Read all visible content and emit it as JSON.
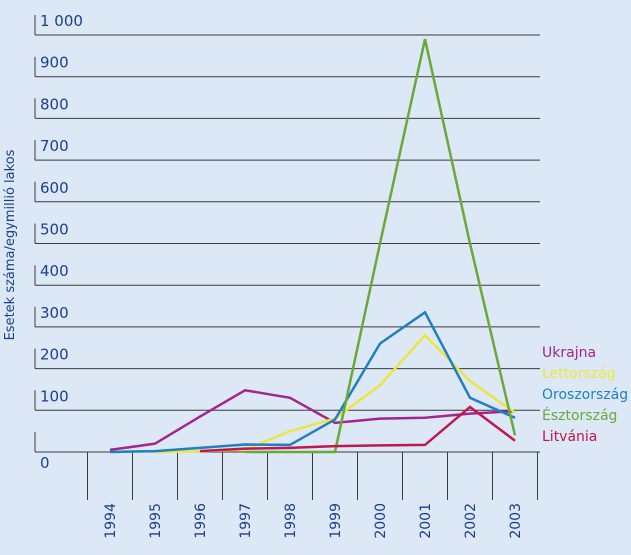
{
  "chart_data": {
    "type": "line",
    "y_label": "Esetek száma/egymillió lakos",
    "categories": [
      "1994",
      "1995",
      "1996",
      "1997",
      "1998",
      "1999",
      "2000",
      "2001",
      "2002",
      "2003"
    ],
    "ylim": [
      0,
      1000
    ],
    "yticks": [
      0,
      100,
      200,
      300,
      400,
      500,
      600,
      700,
      800,
      900,
      {
        "value": 1000,
        "label": "1 000"
      }
    ],
    "grid": true,
    "series": [
      {
        "name": "Ukrajna",
        "color": "#a3268f",
        "values": [
          5,
          20,
          85,
          148,
          130,
          70,
          80,
          82,
          92,
          98
        ]
      },
      {
        "name": "Lettország",
        "color": "#ece540",
        "values": [
          null,
          0,
          2,
          5,
          50,
          80,
          160,
          280,
          170,
          95
        ]
      },
      {
        "name": "Oroszország",
        "color": "#1f7fc1",
        "values": [
          0,
          2,
          10,
          18,
          17,
          78,
          260,
          335,
          130,
          82
        ]
      },
      {
        "name": "Észtország",
        "color": "#6aa83a",
        "values": [
          null,
          null,
          null,
          0,
          0,
          0,
          500,
          990,
          500,
          40
        ]
      },
      {
        "name": "Litvánia",
        "color": "#c0174f",
        "values": [
          null,
          null,
          2,
          8,
          10,
          14,
          16,
          17,
          108,
          27
        ]
      }
    ]
  }
}
